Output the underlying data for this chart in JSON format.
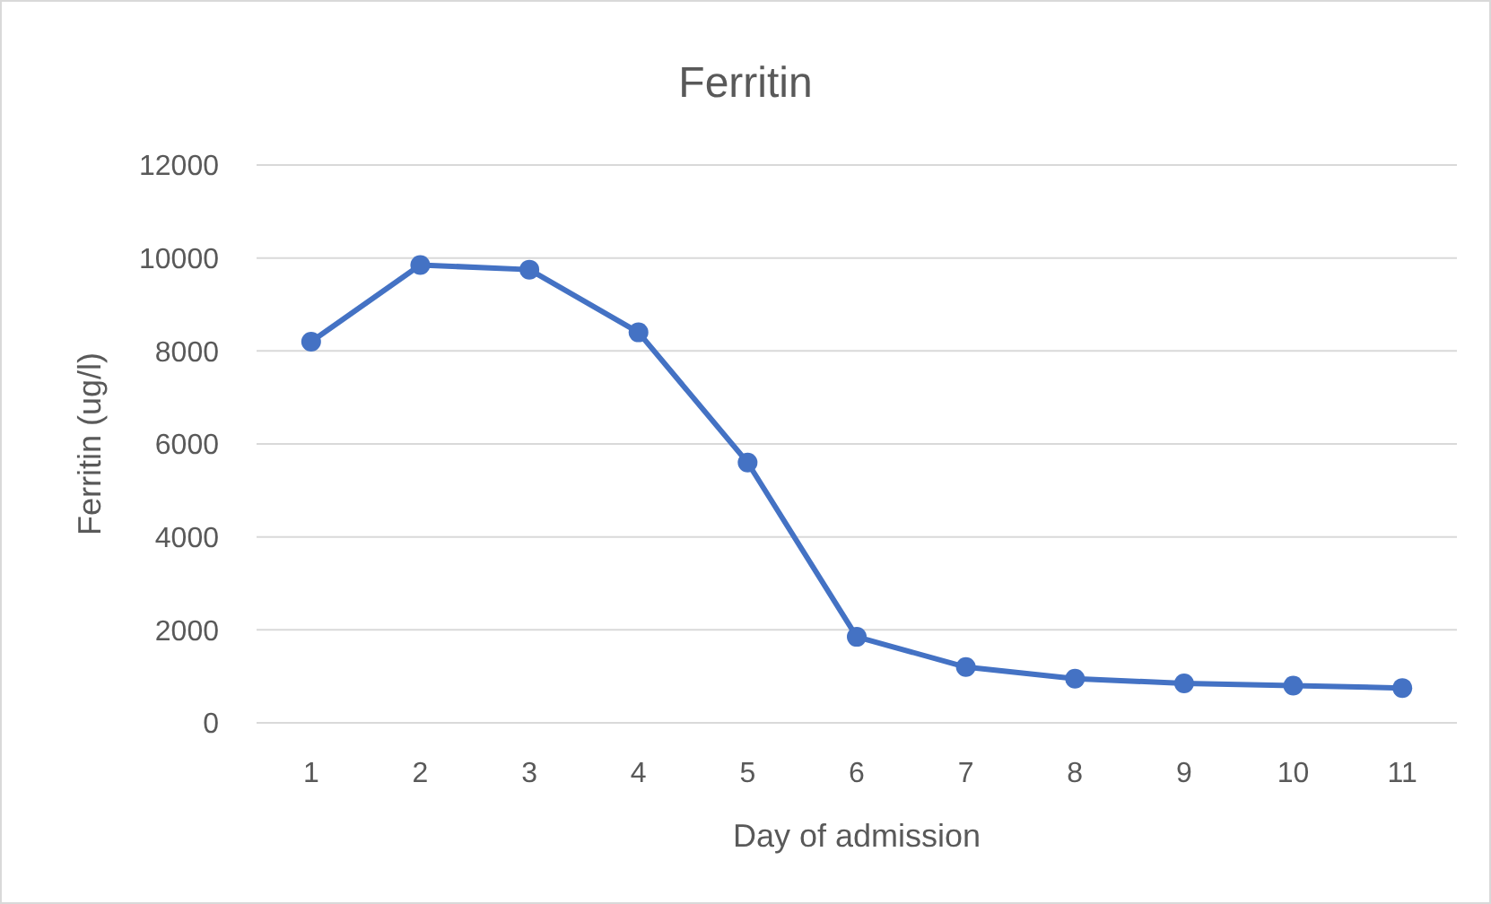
{
  "chart_data": {
    "type": "line",
    "title": "Ferritin",
    "xlabel": "Day of admission",
    "ylabel": "Ferritin (ug/l)",
    "categories": [
      "1",
      "2",
      "3",
      "4",
      "5",
      "6",
      "7",
      "8",
      "9",
      "10",
      "11"
    ],
    "series": [
      {
        "color": "#4472c4",
        "values": [
          8200,
          9850,
          9750,
          8400,
          5600,
          1850,
          1200,
          950,
          850,
          800,
          750
        ]
      }
    ],
    "ylim": [
      0,
      12000
    ],
    "yticks": [
      0,
      2000,
      4000,
      6000,
      8000,
      10000,
      12000
    ],
    "grid": "y",
    "marker": "circle",
    "line_style": "solid"
  }
}
